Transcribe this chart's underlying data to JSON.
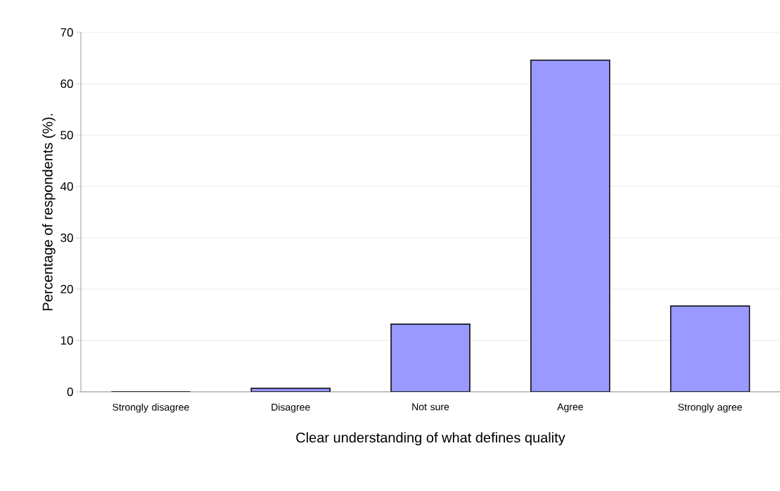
{
  "chart_data": {
    "type": "bar",
    "xlabel": "Clear understanding of what defines quality",
    "ylabel": "Percentage of respondents (%).",
    "categories": [
      "Strongly disagree",
      "Disagree",
      "Not sure",
      "Agree",
      "Strongly agree"
    ],
    "values": [
      0,
      0.7,
      13.2,
      64.6,
      16.7
    ],
    "color": "#9999ff",
    "ylim": [
      0,
      70
    ],
    "yticks": [
      0,
      10,
      20,
      30,
      40,
      50,
      60,
      70
    ],
    "grid": "y"
  }
}
